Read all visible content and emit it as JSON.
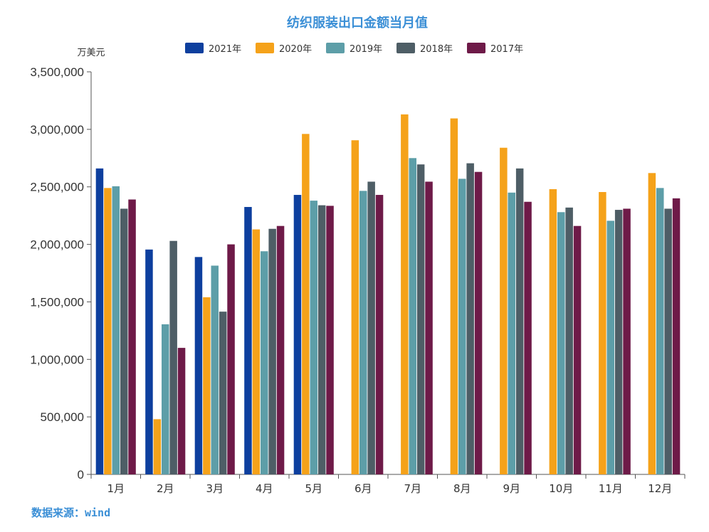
{
  "chart_data": {
    "type": "bar",
    "title": "纺织服装出口金额当月值",
    "ylabel": "万美元",
    "source": "数据来源：wind",
    "ylim": [
      0,
      3500000
    ],
    "yticks": [
      0,
      500000,
      1000000,
      1500000,
      2000000,
      2500000,
      3000000,
      3500000
    ],
    "ytick_labels": [
      "0",
      "500,000",
      "1,000,000",
      "1,500,000",
      "2,000,000",
      "2,500,000",
      "3,000,000",
      "3,500,000"
    ],
    "grid": false,
    "legend_position": "top",
    "categories": [
      "1月",
      "2月",
      "3月",
      "4月",
      "5月",
      "6月",
      "7月",
      "8月",
      "9月",
      "10月",
      "11月",
      "12月"
    ],
    "series": [
      {
        "name": "2021年",
        "color": "#0d3f9e",
        "values": [
          2660000,
          1955000,
          1890000,
          2325000,
          2430000,
          null,
          null,
          null,
          null,
          null,
          null,
          null
        ]
      },
      {
        "name": "2020年",
        "color": "#f5a21a",
        "values": [
          2490000,
          480000,
          1540000,
          2130000,
          2960000,
          2905000,
          3130000,
          3095000,
          2840000,
          2480000,
          2455000,
          2620000
        ]
      },
      {
        "name": "2019年",
        "color": "#5d9ea8",
        "values": [
          2505000,
          1305000,
          1815000,
          1940000,
          2380000,
          2465000,
          2750000,
          2570000,
          2450000,
          2280000,
          2205000,
          2490000
        ]
      },
      {
        "name": "2018年",
        "color": "#4e5e66",
        "values": [
          2310000,
          2030000,
          1415000,
          2135000,
          2340000,
          2545000,
          2695000,
          2705000,
          2660000,
          2320000,
          2300000,
          2310000
        ]
      },
      {
        "name": "2017年",
        "color": "#6e1a48",
        "values": [
          2390000,
          1100000,
          2000000,
          2160000,
          2335000,
          2430000,
          2545000,
          2630000,
          2370000,
          2160000,
          2310000,
          2400000
        ]
      }
    ]
  }
}
